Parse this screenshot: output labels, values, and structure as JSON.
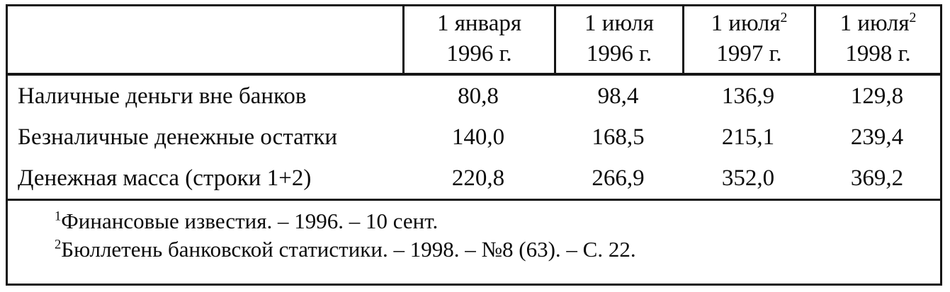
{
  "table": {
    "header": {
      "corner": "",
      "columns": [
        {
          "line1": "1 января",
          "sup": "",
          "line2": "1996 г."
        },
        {
          "line1": "1 июля",
          "sup": "",
          "line2": "1996 г."
        },
        {
          "line1": "1 июля",
          "sup": "2",
          "line2": "1997 г."
        },
        {
          "line1": "1 июля",
          "sup": "2",
          "line2": "1998 г."
        }
      ]
    },
    "rows": [
      {
        "label": "Наличные деньги вне банков",
        "values": [
          "80,8",
          "98,4",
          "136,9",
          "129,8"
        ]
      },
      {
        "label": "Безналичные денежные остатки",
        "values": [
          "140,0",
          "168,5",
          "215,1",
          "239,4"
        ]
      },
      {
        "label": "Денежная масса (строки 1+2)",
        "values": [
          "220,8",
          "266,9",
          "352,0",
          "369,2"
        ]
      }
    ],
    "footnotes": [
      {
        "sup": "1",
        "text": "Финансовые известия. – 1996. – 10 сент."
      },
      {
        "sup": "2",
        "text": "Бюллетень банковской статистики. – 1998. – №8 (63). – С. 22."
      }
    ]
  },
  "colors": {
    "ink": "#0b0b0b",
    "paper": "#ffffff",
    "border": "#151515"
  }
}
